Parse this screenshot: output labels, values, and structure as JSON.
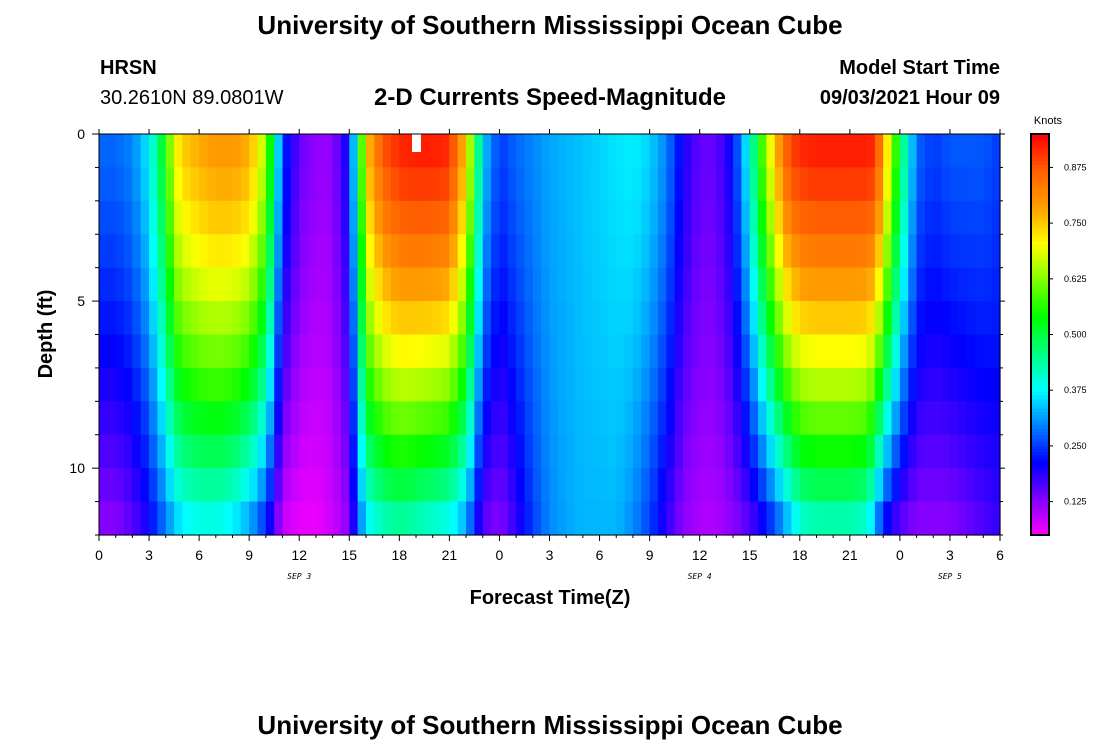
{
  "header": {
    "top_title": "University of Southern Mississippi Ocean Cube",
    "station": "HRSN",
    "coords": "30.2610N  89.0801W",
    "plot_title": "2-D Currents Speed-Magnitude",
    "model_start_label": "Model Start Time",
    "model_start_value": "09/03/2021 Hour 09"
  },
  "footer": {
    "bottom_title": "University of Southern Mississippi Ocean Cube"
  },
  "chart_data": {
    "type": "heatmap",
    "title": "2-D Currents Speed-Magnitude",
    "xlabel": "Forecast Time(Z)",
    "ylabel": "Depth (ft)",
    "x_tick_labels": [
      "0",
      "3",
      "6",
      "9",
      "12",
      "15",
      "18",
      "21",
      "0",
      "3",
      "6",
      "9",
      "12",
      "15",
      "18",
      "21",
      "0",
      "3",
      "6"
    ],
    "x_range_hours": [
      0,
      54
    ],
    "y_tick_labels": [
      "0",
      "5",
      "10"
    ],
    "y_range_ft": [
      0,
      12
    ],
    "day_labels": [
      {
        "label": "SEP 3",
        "hour": 12
      },
      {
        "label": "SEP 4",
        "hour": 36
      },
      {
        "label": "SEP 5",
        "hour": 51
      }
    ],
    "colorbar": {
      "unit": "Knots",
      "range": [
        0.05,
        0.95
      ],
      "tick_labels": [
        "0.125",
        "0.250",
        "0.375",
        "0.500",
        "0.625",
        "0.750",
        "0.875"
      ],
      "tick_values": [
        0.125,
        0.25,
        0.375,
        0.5,
        0.625,
        0.75,
        0.875
      ],
      "colors": [
        "#ff00ff",
        "#8000ff",
        "#0000ff",
        "#0080ff",
        "#00ffff",
        "#00ff80",
        "#00ff00",
        "#80ff00",
        "#ffff00",
        "#ffa000",
        "#ff6000",
        "#ff0000"
      ]
    },
    "speed_profile": {
      "hours": [
        0,
        1,
        2,
        3,
        4,
        4.5,
        5,
        6,
        7,
        8,
        9,
        10,
        10.5,
        11,
        12,
        13,
        14,
        15,
        15.5,
        16,
        17,
        18,
        19,
        20,
        21,
        22,
        22.5,
        23,
        24,
        25,
        26,
        27,
        28,
        29,
        30,
        31,
        32,
        33,
        34,
        35,
        36,
        37,
        38,
        39,
        40,
        41,
        41.5,
        42,
        43,
        44,
        45,
        46,
        46.5,
        47,
        48,
        49,
        50,
        51,
        52,
        53,
        54
      ],
      "surface_knots": [
        0.28,
        0.28,
        0.3,
        0.37,
        0.55,
        0.7,
        0.75,
        0.78,
        0.8,
        0.8,
        0.78,
        0.65,
        0.45,
        0.25,
        0.15,
        0.12,
        0.12,
        0.22,
        0.45,
        0.75,
        0.88,
        0.92,
        0.93,
        0.93,
        0.92,
        0.75,
        0.55,
        0.35,
        0.25,
        0.28,
        0.3,
        0.32,
        0.33,
        0.34,
        0.35,
        0.36,
        0.37,
        0.35,
        0.3,
        0.2,
        0.15,
        0.15,
        0.22,
        0.4,
        0.65,
        0.85,
        0.9,
        0.92,
        0.93,
        0.93,
        0.93,
        0.93,
        0.92,
        0.8,
        0.5,
        0.28,
        0.25,
        0.27,
        0.27,
        0.27,
        0.25
      ],
      "bottom_knots": [
        0.12,
        0.12,
        0.15,
        0.2,
        0.28,
        0.32,
        0.35,
        0.37,
        0.37,
        0.35,
        0.3,
        0.22,
        0.15,
        0.08,
        0.06,
        0.06,
        0.08,
        0.12,
        0.25,
        0.35,
        0.4,
        0.42,
        0.4,
        0.38,
        0.36,
        0.3,
        0.22,
        0.15,
        0.12,
        0.18,
        0.25,
        0.3,
        0.32,
        0.33,
        0.33,
        0.33,
        0.3,
        0.25,
        0.18,
        0.12,
        0.1,
        0.1,
        0.12,
        0.15,
        0.2,
        0.28,
        0.33,
        0.38,
        0.4,
        0.4,
        0.4,
        0.38,
        0.3,
        0.2,
        0.14,
        0.12,
        0.12,
        0.12,
        0.14,
        0.16,
        0.18
      ]
    }
  }
}
